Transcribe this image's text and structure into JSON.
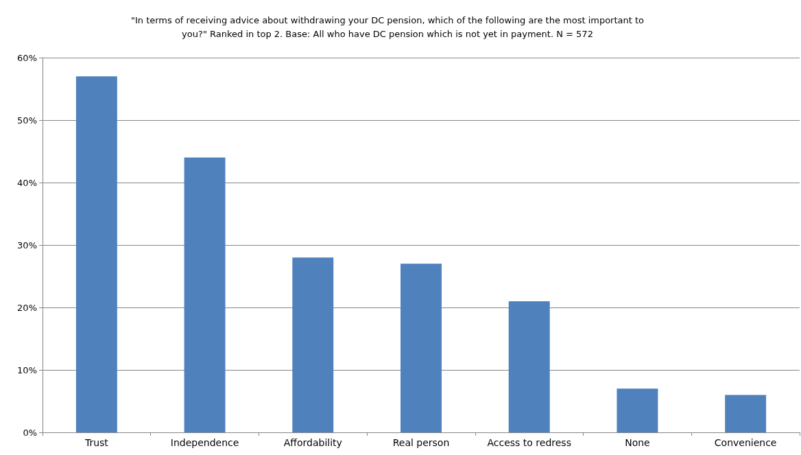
{
  "chart_data": {
    "type": "bar",
    "title": "\"In terms of receiving advice about withdrawing your DC pension, which of the following are the most important to\nyou?\" Ranked in top 2. Base: All who have DC pension which is not yet in payment. N = 572",
    "categories": [
      "Trust",
      "Independence",
      "Affordability",
      "Real person",
      "Access to redress",
      "None",
      "Convenience"
    ],
    "values": [
      57,
      44,
      28,
      27,
      21,
      7,
      6
    ],
    "color": "#4f81bd",
    "ylim": [
      0,
      60
    ],
    "yticks": [
      {
        "value": 0,
        "label": "0%"
      },
      {
        "value": 10,
        "label": "10%"
      },
      {
        "value": 20,
        "label": "20%"
      },
      {
        "value": 30,
        "label": "30%"
      },
      {
        "value": 40,
        "label": "40%"
      },
      {
        "value": 50,
        "label": "50%"
      },
      {
        "value": 60,
        "label": "60%"
      }
    ],
    "grid": "y"
  }
}
